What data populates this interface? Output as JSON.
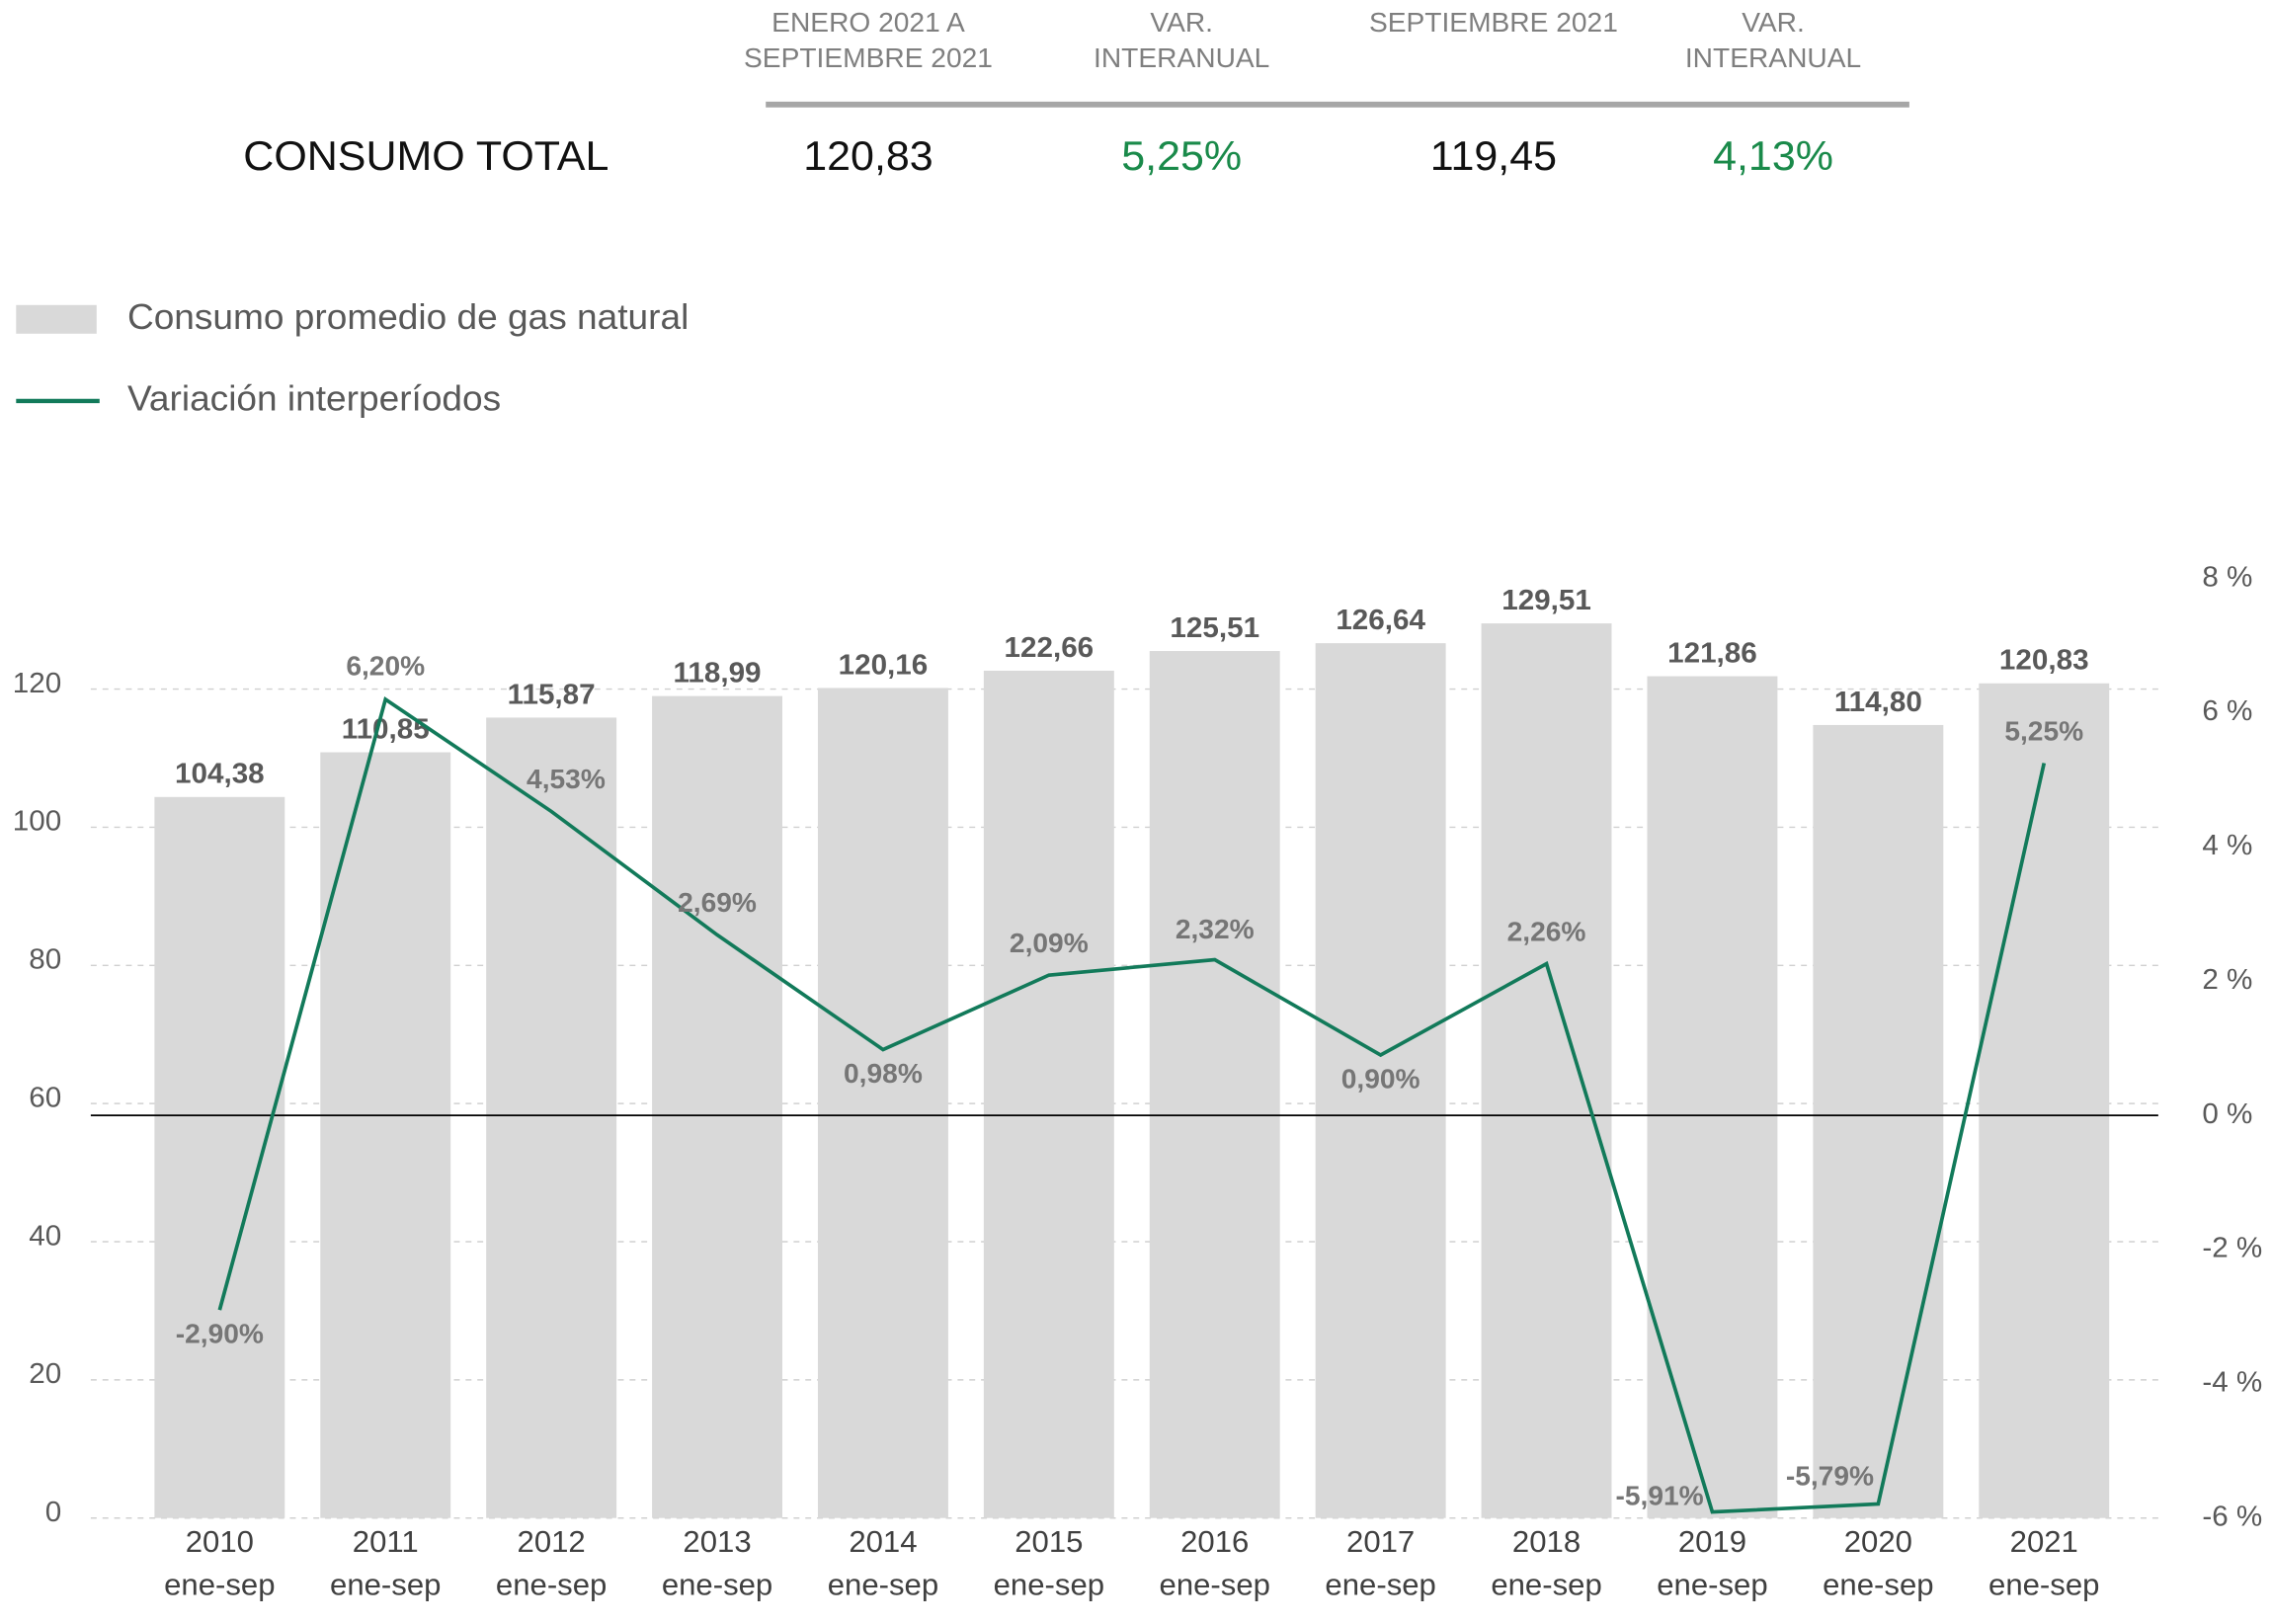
{
  "table": {
    "columns": [
      [
        "ENERO 2021 A",
        "SEPTIEMBRE 2021"
      ],
      [
        "VAR.",
        "INTERANUAL"
      ],
      [
        "SEPTIEMBRE  2021"
      ],
      [
        "VAR.",
        "INTERANUAL"
      ]
    ],
    "rows": [
      [
        "CONSUMO TOTAL",
        "120,83",
        "5,25%",
        "119,45",
        "4,13%"
      ]
    ]
  },
  "chart_data": {
    "type": "bar",
    "categories": [
      [
        "2010",
        "ene-sep"
      ],
      [
        "2011",
        "ene-sep"
      ],
      [
        "2012",
        "ene-sep"
      ],
      [
        "2013",
        "ene-sep"
      ],
      [
        "2014",
        "ene-sep"
      ],
      [
        "2015",
        "ene-sep"
      ],
      [
        "2016",
        "ene-sep"
      ],
      [
        "2017",
        "ene-sep"
      ],
      [
        "2018",
        "ene-sep"
      ],
      [
        "2019",
        "ene-sep"
      ],
      [
        "2020",
        "ene-sep"
      ],
      [
        "2021",
        "ene-sep"
      ]
    ],
    "series": [
      {
        "name": "Consumo promedio de gas natural",
        "type": "bar",
        "color": "#d9d9d9",
        "values": [
          104.38,
          110.85,
          115.87,
          118.99,
          120.16,
          122.66,
          125.51,
          126.64,
          129.51,
          121.86,
          114.8,
          120.83
        ],
        "value_labels": [
          "104,38",
          "110,85",
          "115,87",
          "118,99",
          "120,16",
          "122,66",
          "125,51",
          "126,64",
          "129,51",
          "121,86",
          "114,80",
          "120,83"
        ]
      },
      {
        "name": "Variación interperíodos",
        "type": "line",
        "axis": "y2",
        "color": "#127a5a",
        "values": [
          -2.9,
          6.2,
          4.53,
          2.69,
          0.98,
          2.09,
          2.32,
          0.9,
          2.26,
          -5.91,
          -5.79,
          5.25
        ],
        "value_labels": [
          "-2,90%",
          "6,20%",
          "4,53%",
          "2,69%",
          "0,98%",
          "2,09%",
          "2,32%",
          "0,90%",
          "2,26%",
          "-5,91%",
          "-5,79%",
          "5,25%"
        ]
      }
    ],
    "ylim": [
      0,
      136
    ],
    "yticks": [
      0,
      20,
      40,
      60,
      80,
      100,
      120
    ],
    "y2lim": [
      -6,
      8
    ],
    "y2ticks": [
      {
        "value": -6,
        "label": "-6 %"
      },
      {
        "value": -4,
        "label": "-4 %"
      },
      {
        "value": -2,
        "label": "-2 %"
      },
      {
        "value": 0,
        "label": "0 %"
      },
      {
        "value": 2,
        "label": "2 %"
      },
      {
        "value": 4,
        "label": "4 %"
      },
      {
        "value": 6,
        "label": "6 %"
      },
      {
        "value": 8,
        "label": "8 %"
      }
    ],
    "grid": true,
    "legend": "top-left"
  }
}
